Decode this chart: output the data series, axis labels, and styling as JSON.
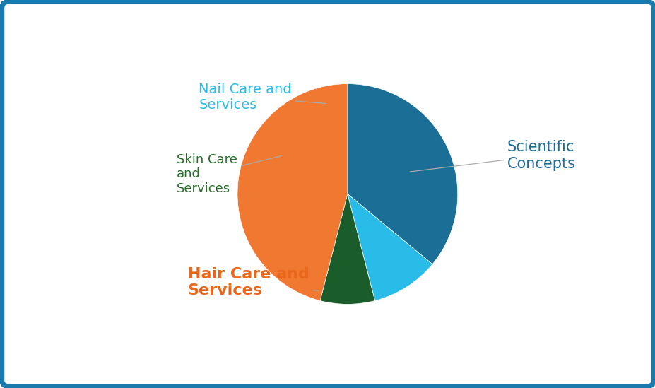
{
  "labels": [
    "Scientific Concepts",
    "Nail Care and\nServices",
    "Skin Care\nand\nServices",
    "Hair Care and\nServices"
  ],
  "values": [
    36,
    10,
    8,
    46
  ],
  "colors": [
    "#1b6e96",
    "#29bce8",
    "#1a5c2a",
    "#f07830"
  ],
  "label_colors": [
    "#1b6e96",
    "#29bce8",
    "#2a6e2a",
    "#e8671a"
  ],
  "label_fontweights": [
    "normal",
    "normal",
    "normal",
    "bold"
  ],
  "label_fontsizes": [
    15,
    14,
    13,
    16
  ],
  "background_color": "#ffffff",
  "border_color": "#1a7aab",
  "startangle": 90,
  "figsize": [
    9.28,
    5.49
  ]
}
